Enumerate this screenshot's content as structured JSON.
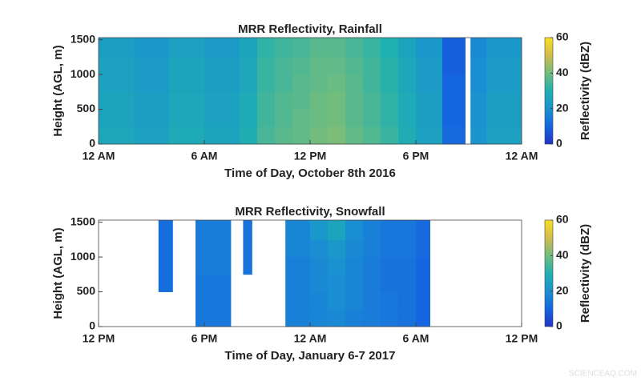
{
  "chart_data": [
    {
      "type": "heatmap",
      "title": "MRR Reflectivity, Rainfall",
      "xlabel": "Time of Day, October 8th 2016",
      "ylabel": "Height (AGL, m)",
      "colorbar_label": "Reflectivity (dBZ)",
      "xlim": [
        0,
        24
      ],
      "xticks": [
        {
          "value": 0,
          "label": "12 AM"
        },
        {
          "value": 6,
          "label": "6 AM"
        },
        {
          "value": 12,
          "label": "12 PM"
        },
        {
          "value": 18,
          "label": "6 PM"
        },
        {
          "value": 24,
          "label": "12 AM"
        }
      ],
      "ylim": [
        0,
        1530
      ],
      "yticks": [
        0,
        500,
        1000,
        1500
      ],
      "clim": [
        0,
        60
      ],
      "cticks": [
        0,
        20,
        40,
        60
      ],
      "colormap": [
        "#2233c8",
        "#1565e0",
        "#1a92d0",
        "#1fb0b0",
        "#72bd7e",
        "#d2bb4c",
        "#f8e020"
      ],
      "xbins": [
        0,
        2,
        4,
        6,
        8,
        9,
        10,
        11,
        12,
        13,
        14,
        15,
        16,
        17,
        18,
        19.5,
        20.8,
        21.1,
        22,
        24
      ],
      "ybins": [
        0,
        250,
        500,
        750,
        1000,
        1250,
        1530
      ],
      "z": [
        [
          27,
          25,
          28,
          26,
          29,
          35,
          37,
          38,
          40,
          41,
          38,
          36,
          33,
          29,
          25,
          11,
          null,
          21,
          25
        ],
        [
          26,
          24,
          27,
          25,
          28,
          34,
          36,
          38,
          39,
          40,
          37,
          35,
          32,
          28,
          24,
          10,
          null,
          20,
          24
        ],
        [
          26,
          24,
          27,
          25,
          28,
          34,
          36,
          37,
          39,
          40,
          37,
          35,
          32,
          28,
          24,
          10,
          null,
          20,
          24
        ],
        [
          25,
          23,
          26,
          24,
          27,
          33,
          35,
          37,
          38,
          39,
          37,
          34,
          31,
          27,
          23,
          10,
          null,
          19,
          23
        ],
        [
          25,
          23,
          26,
          24,
          27,
          33,
          35,
          36,
          38,
          38,
          36,
          34,
          31,
          27,
          23,
          9,
          null,
          19,
          23
        ],
        [
          24,
          22,
          25,
          23,
          26,
          32,
          34,
          35,
          37,
          37,
          35,
          33,
          30,
          26,
          22,
          9,
          null,
          18,
          22
        ]
      ]
    },
    {
      "type": "heatmap",
      "title": "MRR Reflectivity, Snowfall",
      "xlabel": "Time of Day, January 6-7 2017",
      "ylabel": "Height (AGL, m)",
      "colorbar_label": "Reflectivity (dBZ)",
      "xlim": [
        0,
        24
      ],
      "xticks": [
        {
          "value": 0,
          "label": "12 PM"
        },
        {
          "value": 6,
          "label": "6 PM"
        },
        {
          "value": 12,
          "label": "12 AM"
        },
        {
          "value": 18,
          "label": "6 AM"
        },
        {
          "value": 24,
          "label": "12 PM"
        }
      ],
      "ylim": [
        0,
        1530
      ],
      "yticks": [
        0,
        500,
        1000,
        1500
      ],
      "clim": [
        0,
        60
      ],
      "cticks": [
        0,
        20,
        40,
        60
      ],
      "colormap": [
        "#2233c8",
        "#1565e0",
        "#1a92d0",
        "#1fb0b0",
        "#72bd7e",
        "#d2bb4c",
        "#f8e020"
      ],
      "xbins": [
        0,
        3.4,
        4.2,
        5.5,
        7.5,
        8.2,
        8.7,
        10.6,
        12,
        13,
        14,
        15,
        16,
        17,
        18,
        18.8,
        24
      ],
      "ybins": [
        0,
        250,
        500,
        750,
        1000,
        1250,
        1530
      ],
      "z": [
        [
          null,
          null,
          null,
          14,
          null,
          null,
          null,
          16,
          17,
          18,
          16,
          15,
          14,
          13,
          10,
          null
        ],
        [
          null,
          null,
          null,
          14,
          null,
          null,
          null,
          16,
          17,
          19,
          17,
          15,
          14,
          13,
          10,
          null
        ],
        [
          null,
          12,
          null,
          14,
          null,
          null,
          null,
          16,
          18,
          19,
          17,
          15,
          13,
          13,
          10,
          null
        ],
        [
          null,
          12,
          null,
          15,
          null,
          13,
          null,
          16,
          18,
          20,
          17,
          15,
          13,
          13,
          10,
          null
        ],
        [
          null,
          12,
          null,
          15,
          null,
          13,
          null,
          17,
          19,
          22,
          18,
          16,
          14,
          14,
          11,
          null
        ],
        [
          null,
          12,
          null,
          15,
          null,
          13,
          null,
          17,
          22,
          26,
          19,
          16,
          14,
          14,
          11,
          null
        ]
      ]
    }
  ],
  "watermark": "SCIENCEAQ.COM"
}
